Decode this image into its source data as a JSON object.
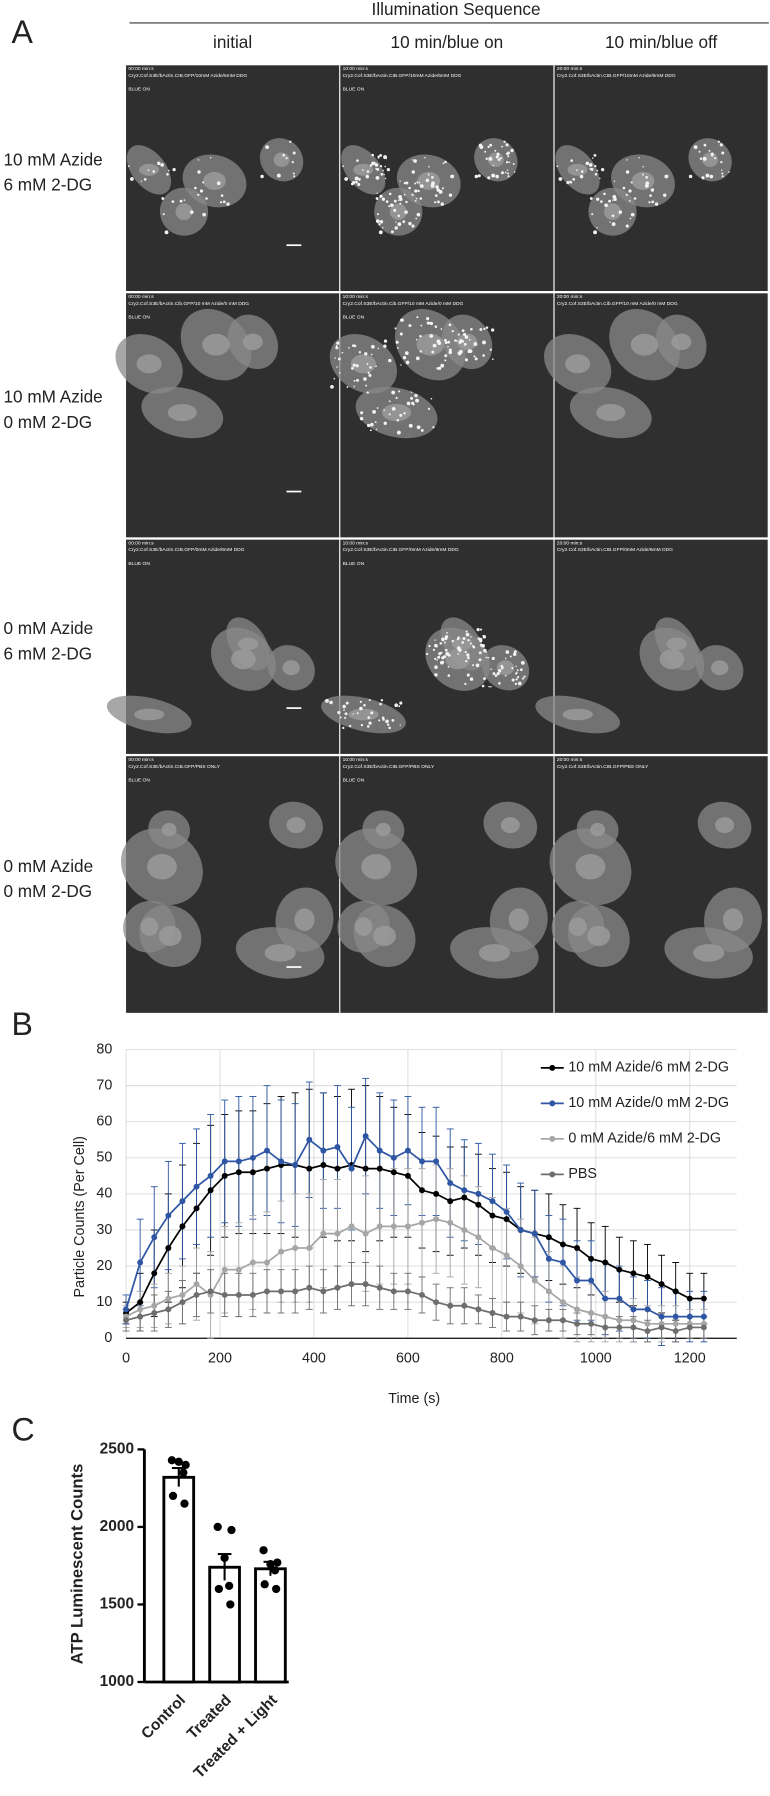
{
  "panel_labels": [
    "A",
    "B",
    "C"
  ],
  "panel_a": {
    "title": "Illumination Sequence",
    "columns": [
      "initial",
      "10 min/blue on",
      "10 min/blue off"
    ],
    "row_labels": [
      [
        "10 mM Azide",
        "6 mM 2-DG"
      ],
      [
        "10 mM Azide",
        "0 mM 2-DG"
      ],
      [
        "0 mM Azide",
        "6 mM 2-DG"
      ],
      [
        "0 mM Azide",
        "0 mM 2-DG"
      ]
    ],
    "images": [
      [
        {
          "time": "00:00 min:s",
          "label": "Cry2.Cof.S3E/bActin.CIB.GFP/10mM Azide/6mM DDG",
          "status": "BLUE ON"
        },
        {
          "time": "10:00 min:s",
          "label": "Cry2.Cof.S3E/bActin.CIB.GFP/10mM Azide/6mM DDG",
          "status": "BLUE ON"
        },
        {
          "time": "20:00 min:s",
          "label": "Cry2.Cof.S3E/bActin.CIB.GFP/10mM Azide/6mM DDG"
        }
      ],
      [
        {
          "time": "00:00 min:s",
          "label": "Cry2.Cof.S3E/bActin.Cib.GFP/10 mM Azide/0 mM DDG",
          "status": "BLUE ON"
        },
        {
          "time": "10:00 min:s",
          "label": "Cry2.Cof.S3E/bActin.Cib.GFP/10 mM Azide/0 mM DDG",
          "status": "BLUE ON"
        },
        {
          "time": "20:00 min:s",
          "label": "Cry2.Cof.S3E/bActin.Cib.GFP/10 mM Azide/0 mM DDG"
        }
      ],
      [
        {
          "time": "00:00 min:s",
          "label": "Cry2.Cof.S3E/bActin.CIB.GFP/0mM Azide/6mM DDG",
          "status": "BLUE ON"
        },
        {
          "time": "10:00 min:s",
          "label": "Cry2.Cof.S3E/bActin.CIB.GFP/0mM Azide/6mM DDG",
          "status": "BLUE ON"
        },
        {
          "time": "20:00 min:s",
          "label": "Cry2.Cof.S3E/bActin.CIB.GFP/0mM Azide/6mM DDG"
        }
      ],
      [
        {
          "time": "00:00 min:s",
          "label": "Cry2.Cof.S3E/bActin.CIB.GFP/PBS ONLY",
          "status": "BLUE ON"
        },
        {
          "time": "10:00 min:s",
          "label": "Cry2.Cof.S3E/bActin.CIB.GFP/PBS ONLY",
          "status": "BLUE ON"
        },
        {
          "time": "20:00 min:s",
          "label": "Cry2.Cof.S3E/bActin.CIB.GFP/PBS ONLY"
        }
      ]
    ]
  },
  "chart_data": [
    {
      "type": "line",
      "xlabel": "Time (s)",
      "ylabel": "Particle Counts (Per Cell)",
      "x": [
        0,
        30,
        60,
        90,
        120,
        150,
        180,
        210,
        240,
        270,
        300,
        330,
        360,
        390,
        420,
        450,
        480,
        510,
        540,
        570,
        600,
        630,
        660,
        690,
        720,
        750,
        780,
        810,
        840,
        870,
        900,
        930,
        960,
        990,
        1020,
        1050,
        1080,
        1110,
        1140,
        1170,
        1200,
        1230
      ],
      "xlim": [
        0,
        1300
      ],
      "xticks": [
        0,
        200,
        400,
        600,
        800,
        1000,
        1200
      ],
      "ylim": [
        0,
        80
      ],
      "yticks": [
        0,
        10,
        20,
        30,
        40,
        50,
        60,
        70,
        80
      ],
      "grid": true,
      "legend": "upper right",
      "series": [
        {
          "name": "10 mM Azide/6 mM 2-DG",
          "color": "#000000",
          "values": [
            7,
            10,
            18,
            25,
            31,
            36,
            41,
            45,
            46,
            46,
            47,
            48,
            48,
            47,
            48,
            47,
            48,
            47,
            47,
            46,
            45,
            41,
            40,
            38,
            39,
            37,
            34,
            33,
            30,
            29,
            28,
            26,
            25,
            22,
            21,
            19,
            18,
            17,
            15,
            13,
            11,
            11
          ],
          "errors": [
            3,
            8,
            12,
            15,
            17,
            18,
            18,
            17,
            17,
            17,
            18,
            19,
            20,
            22,
            20,
            20,
            21,
            23,
            20,
            18,
            17,
            16,
            16,
            15,
            14,
            14,
            13,
            13,
            12,
            12,
            12,
            11,
            11,
            10,
            10,
            9,
            9,
            9,
            8,
            8,
            7,
            7
          ]
        },
        {
          "name": "10 mM Azide/0 mM 2-DG",
          "color": "#2e56a4",
          "values": [
            8,
            21,
            28,
            34,
            38,
            42,
            45,
            49,
            49,
            50,
            52,
            49,
            48,
            55,
            52,
            53,
            47,
            56,
            52,
            50,
            52,
            49,
            49,
            43,
            41,
            40,
            38,
            35,
            30,
            29,
            22,
            21,
            16,
            16,
            11,
            11,
            8,
            8,
            6,
            6,
            6,
            6
          ],
          "errors": [
            4,
            12,
            14,
            15,
            16,
            16,
            17,
            17,
            18,
            17,
            18,
            17,
            17,
            16,
            16,
            17,
            17,
            16,
            16,
            16,
            15,
            15,
            15,
            15,
            14,
            14,
            13,
            13,
            13,
            12,
            12,
            12,
            11,
            11,
            10,
            9,
            9,
            8,
            8,
            7,
            7,
            7
          ]
        },
        {
          "name": "0 mM Azide/6 mM 2-DG",
          "color": "#a6a6a6",
          "values": [
            6,
            8,
            9,
            11,
            12,
            15,
            12,
            19,
            19,
            21,
            21,
            24,
            25,
            25,
            29,
            29,
            31,
            29,
            31,
            31,
            31,
            32,
            33,
            32,
            30,
            28,
            25,
            23,
            20,
            16,
            13,
            10,
            8,
            7,
            6,
            5,
            5,
            4,
            4,
            4,
            4,
            4
          ],
          "errors": [
            3,
            5,
            6,
            7,
            8,
            10,
            12,
            12,
            13,
            13,
            14,
            14,
            15,
            15,
            15,
            15,
            16,
            16,
            16,
            16,
            16,
            15,
            15,
            15,
            15,
            14,
            14,
            13,
            13,
            12,
            11,
            10,
            9,
            8,
            7,
            6,
            6,
            5,
            5,
            5,
            4,
            4
          ]
        },
        {
          "name": "PBS",
          "color": "#6e6e6e",
          "values": [
            5,
            6,
            7,
            8,
            10,
            12,
            13,
            12,
            12,
            12,
            13,
            13,
            13,
            14,
            13,
            14,
            15,
            15,
            14,
            13,
            13,
            12,
            10,
            9,
            9,
            8,
            7,
            6,
            6,
            5,
            5,
            5,
            4,
            4,
            3,
            3,
            3,
            2,
            3,
            2,
            3,
            3
          ],
          "errors": [
            3,
            4,
            5,
            5,
            6,
            6,
            6,
            6,
            6,
            6,
            6,
            6,
            6,
            6,
            6,
            6,
            6,
            6,
            6,
            5,
            5,
            5,
            5,
            5,
            5,
            4,
            4,
            4,
            4,
            4,
            3,
            3,
            3,
            3,
            3,
            3,
            3,
            3,
            3,
            3,
            3,
            3
          ]
        }
      ]
    },
    {
      "type": "bar",
      "ylabel": "ATP Luminescent Counts",
      "categories": [
        "Control",
        "Treated",
        "Treated + Light"
      ],
      "values": [
        2320,
        1740,
        1730
      ],
      "errors": [
        60,
        85,
        45
      ],
      "color": "#ffffff",
      "points": [
        [
          2430,
          2400,
          2420,
          2350,
          2200,
          2150
        ],
        [
          2000,
          1980,
          1800,
          1620,
          1600,
          1500
        ],
        [
          1850,
          1770,
          1760,
          1720,
          1630,
          1600
        ]
      ],
      "ylim": [
        1000,
        2500
      ],
      "yticks": [
        1000,
        1500,
        2000,
        2500
      ]
    }
  ]
}
